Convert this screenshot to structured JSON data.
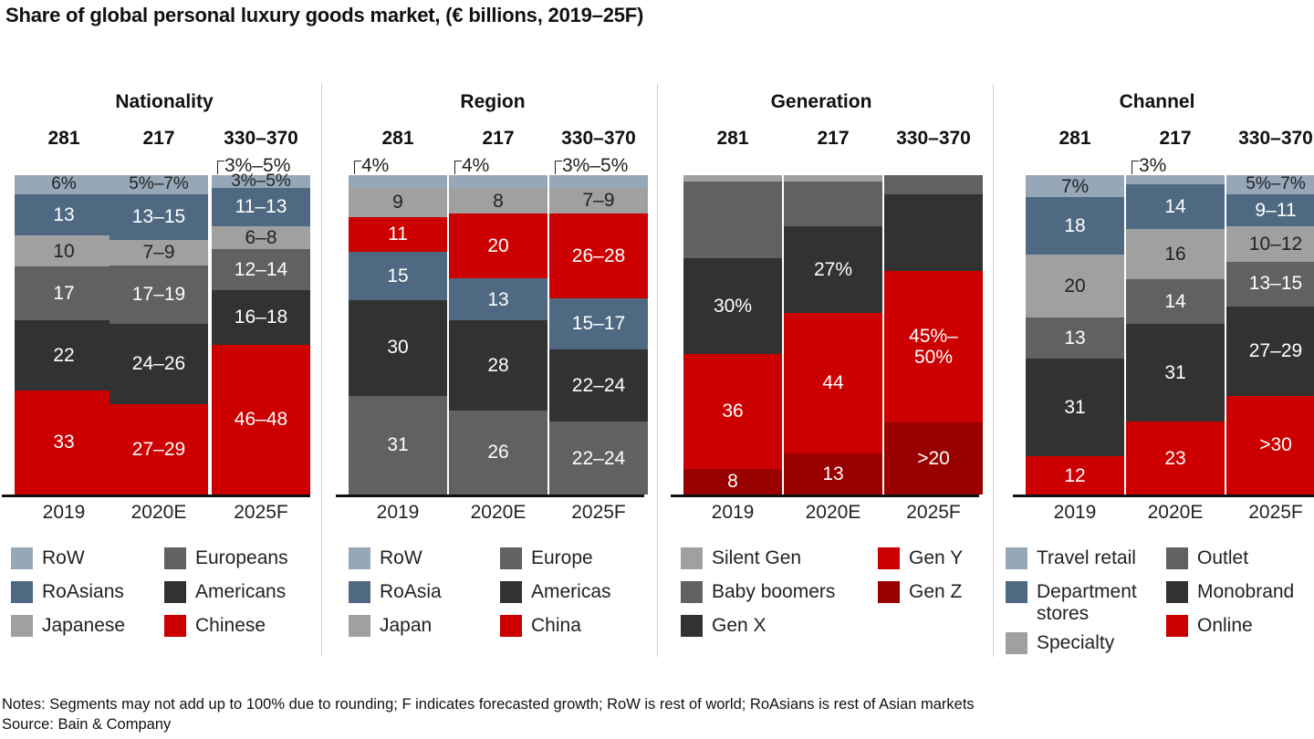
{
  "title": "Share of global personal luxury goods market, (€ billions, 2019–25F)",
  "colors": {
    "light_steel": "#96a8b8",
    "steel_blue": "#4f6983",
    "light_gray": "#a0a0a0",
    "mid_gray": "#616161",
    "dark": "#323232",
    "red": "#cc0000",
    "dark_red": "#990000"
  },
  "chart_data": [
    {
      "type": "bar",
      "stacked": true,
      "title": "Nationality",
      "categories": [
        "2019",
        "2020E",
        "2025F"
      ],
      "totals": [
        "281",
        "217",
        "330–370"
      ],
      "series": [
        {
          "name": "RoW",
          "color": "#96a8b8",
          "values": [
            6,
            6,
            4
          ],
          "labels": [
            "6%",
            "5%–7%",
            "3%–5%"
          ],
          "label_dark": true
        },
        {
          "name": "RoAsians",
          "color": "#4f6983",
          "values": [
            13,
            14,
            12
          ],
          "labels": [
            "13",
            "13–15",
            "11–13"
          ]
        },
        {
          "name": "Japanese",
          "color": "#a0a0a0",
          "values": [
            10,
            8,
            7
          ],
          "labels": [
            "10",
            "7–9",
            "6–8"
          ],
          "label_dark": true
        },
        {
          "name": "Europeans",
          "color": "#616161",
          "values": [
            17,
            18,
            13
          ],
          "labels": [
            "17",
            "17–19",
            "12–14"
          ]
        },
        {
          "name": "Americans",
          "color": "#323232",
          "values": [
            22,
            25,
            17
          ],
          "labels": [
            "22",
            "24–26",
            "16–18"
          ]
        },
        {
          "name": "Chinese",
          "color": "#cc0000",
          "values": [
            33,
            28,
            47
          ],
          "labels": [
            "33",
            "27–29",
            "46–48"
          ]
        }
      ],
      "callouts": [
        null,
        null,
        "3%–5%"
      ],
      "legend": {
        "columns": [
          [
            "RoW",
            "RoAsians",
            "Japanese"
          ],
          [
            "Europeans",
            "Americans",
            "Chinese"
          ]
        ]
      },
      "ylim": [
        0,
        100
      ]
    },
    {
      "type": "bar",
      "stacked": true,
      "title": "Region",
      "categories": [
        "2019",
        "2020E",
        "2025F"
      ],
      "totals": [
        "281",
        "217",
        "330–370"
      ],
      "series": [
        {
          "name": "RoW",
          "color": "#96a8b8",
          "values": [
            4,
            4,
            4
          ],
          "labels": [
            "",
            "",
            ""
          ]
        },
        {
          "name": "Japan",
          "color": "#a0a0a0",
          "values": [
            9,
            8,
            8
          ],
          "labels": [
            "9",
            "8",
            "7–9"
          ],
          "label_dark": true
        },
        {
          "name": "China",
          "color": "#cc0000",
          "values": [
            11,
            20,
            27
          ],
          "labels": [
            "11",
            "20",
            "26–28"
          ]
        },
        {
          "name": "RoAsia",
          "color": "#4f6983",
          "values": [
            15,
            13,
            16
          ],
          "labels": [
            "15",
            "13",
            "15–17"
          ]
        },
        {
          "name": "Americas",
          "color": "#323232",
          "values": [
            30,
            28,
            23
          ],
          "labels": [
            "30",
            "28",
            "22–24"
          ]
        },
        {
          "name": "Europe",
          "color": "#616161",
          "values": [
            31,
            26,
            23
          ],
          "labels": [
            "31",
            "26",
            "22–24"
          ]
        }
      ],
      "callouts": [
        "4%",
        "4%",
        "3%–5%"
      ],
      "legend": {
        "columns": [
          [
            "RoW",
            "RoAsia",
            "Japan"
          ],
          [
            "Europe",
            "Americas",
            "China"
          ]
        ]
      },
      "ylim": [
        0,
        100
      ]
    },
    {
      "type": "bar",
      "stacked": true,
      "title": "Generation",
      "categories": [
        "2019",
        "2020E",
        "2025F"
      ],
      "totals": [
        "281",
        "217",
        "330–370"
      ],
      "series": [
        {
          "name": "Silent Gen",
          "color": "#a0a0a0",
          "values": [
            2,
            2,
            0
          ],
          "labels": [
            "",
            "",
            ""
          ]
        },
        {
          "name": "Baby boomers",
          "color": "#616161",
          "values": [
            24,
            14,
            6
          ],
          "labels": [
            "",
            "",
            ""
          ]
        },
        {
          "name": "Gen X",
          "color": "#323232",
          "values": [
            30,
            27,
            24
          ],
          "labels": [
            "30%",
            "27%",
            ""
          ]
        },
        {
          "name": "Gen Y",
          "color": "#cc0000",
          "values": [
            36,
            44,
            47.5
          ],
          "labels": [
            "36",
            "44",
            "45%–\n50%"
          ]
        },
        {
          "name": "Gen Z",
          "color": "#990000",
          "values": [
            8,
            13,
            22.5
          ],
          "labels": [
            "8",
            "13",
            ">20"
          ]
        }
      ],
      "callouts": [
        null,
        null,
        null
      ],
      "legend": {
        "columns": [
          [
            "Silent Gen",
            "Baby boomers",
            "Gen X"
          ],
          [
            "Gen Y",
            "Gen Z"
          ]
        ]
      },
      "ylim": [
        0,
        100
      ]
    },
    {
      "type": "bar",
      "stacked": true,
      "title": "Channel",
      "categories": [
        "2019",
        "2020E",
        "2025F"
      ],
      "totals": [
        "281",
        "217",
        "330–370"
      ],
      "series": [
        {
          "name": "Travel retail",
          "color": "#96a8b8",
          "values": [
            7,
            3,
            6
          ],
          "labels": [
            "7%",
            "",
            "5%–7%"
          ],
          "label_dark": true
        },
        {
          "name": "Department stores",
          "color": "#4f6983",
          "values": [
            18,
            14,
            10
          ],
          "labels": [
            "18",
            "14",
            "9–11"
          ]
        },
        {
          "name": "Specialty",
          "color": "#a0a0a0",
          "values": [
            20,
            16,
            11
          ],
          "labels": [
            "20",
            "16",
            "10–12"
          ],
          "label_dark": true
        },
        {
          "name": "Outlet",
          "color": "#616161",
          "values": [
            13,
            14,
            14
          ],
          "labels": [
            "13",
            "14",
            "13–15"
          ]
        },
        {
          "name": "Monobrand",
          "color": "#323232",
          "values": [
            31,
            31,
            28
          ],
          "labels": [
            "31",
            "31",
            "27–29"
          ]
        },
        {
          "name": "Online",
          "color": "#cc0000",
          "values": [
            12,
            23,
            31
          ],
          "labels": [
            "12",
            "23",
            ">30"
          ]
        }
      ],
      "callouts": [
        null,
        "3%",
        null
      ],
      "legend": {
        "columns": [
          [
            "Travel retail",
            "Department\nstores",
            "Specialty"
          ],
          [
            "Outlet",
            "Monobrand",
            "Online"
          ]
        ]
      },
      "ylim": [
        0,
        100
      ]
    }
  ],
  "notes": "Notes: Segments may not add up to 100% due to rounding; F indicates forecasted growth; RoW is rest of world; RoAsians is rest of Asian markets",
  "source": "Source: Bain & Company"
}
